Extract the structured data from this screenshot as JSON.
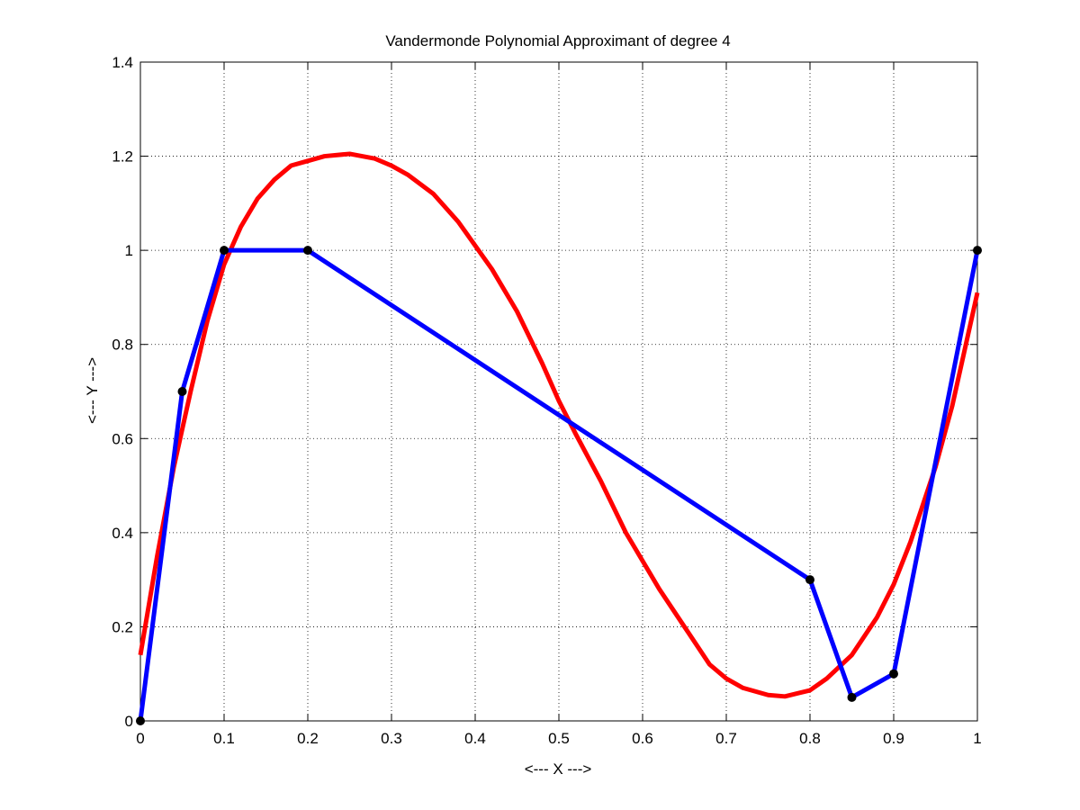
{
  "chart_data": {
    "type": "line",
    "title": "Vandermonde Polynomial Approximant of degree 4",
    "xlabel": "<--- X --->",
    "ylabel": "<--- Y --->",
    "xlim": [
      0,
      1
    ],
    "ylim": [
      0,
      1.4
    ],
    "grid": true,
    "x_ticks": [
      0,
      0.1,
      0.2,
      0.3,
      0.4,
      0.5,
      0.6,
      0.7,
      0.8,
      0.9,
      1
    ],
    "x_tick_labels": [
      "0",
      "0.1",
      "0.2",
      "0.3",
      "0.4",
      "0.5",
      "0.6",
      "0.7",
      "0.8",
      "0.9",
      "1"
    ],
    "y_ticks": [
      0,
      0.2,
      0.4,
      0.6,
      0.8,
      1,
      1.2,
      1.4
    ],
    "y_tick_labels": [
      "0",
      "0.2",
      "0.4",
      "0.6",
      "0.8",
      "1",
      "1.2",
      "1.4"
    ],
    "series": [
      {
        "color": "#ff0000",
        "style": "line",
        "x": [
          0,
          0.02,
          0.04,
          0.06,
          0.08,
          0.1,
          0.12,
          0.14,
          0.16,
          0.18,
          0.2,
          0.22,
          0.25,
          0.28,
          0.3,
          0.32,
          0.35,
          0.38,
          0.4,
          0.42,
          0.45,
          0.48,
          0.5,
          0.52,
          0.55,
          0.58,
          0.6,
          0.62,
          0.65,
          0.68,
          0.7,
          0.72,
          0.75,
          0.77,
          0.8,
          0.82,
          0.85,
          0.88,
          0.9,
          0.92,
          0.95,
          0.97,
          1.0
        ],
        "y": [
          0.14,
          0.35,
          0.54,
          0.7,
          0.85,
          0.97,
          1.05,
          1.11,
          1.15,
          1.18,
          1.19,
          1.2,
          1.205,
          1.195,
          1.18,
          1.16,
          1.12,
          1.06,
          1.01,
          0.96,
          0.87,
          0.76,
          0.68,
          0.61,
          0.51,
          0.4,
          0.34,
          0.28,
          0.2,
          0.12,
          0.09,
          0.07,
          0.055,
          0.052,
          0.065,
          0.09,
          0.14,
          0.22,
          0.29,
          0.38,
          0.54,
          0.67,
          0.91
        ]
      },
      {
        "color": "#0000ff",
        "style": "line-markers",
        "marker_color": "#000000",
        "x": [
          0,
          0.05,
          0.1,
          0.2,
          0.8,
          0.85,
          0.9,
          1.0
        ],
        "y": [
          0,
          0.7,
          1.0,
          1.0,
          0.3,
          0.05,
          0.1,
          1.0
        ]
      }
    ]
  }
}
